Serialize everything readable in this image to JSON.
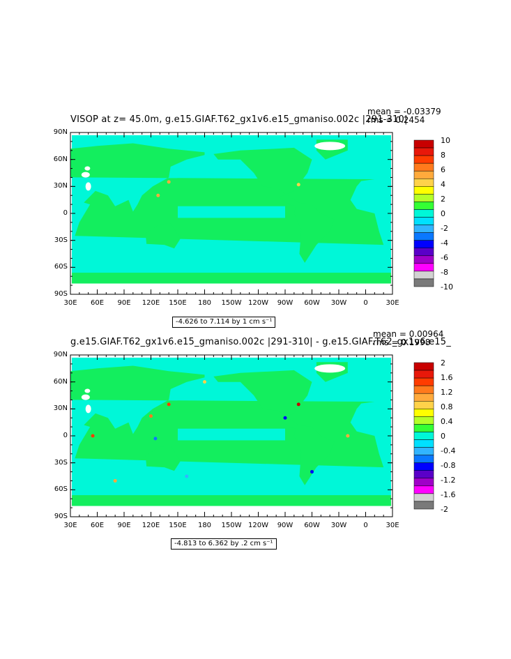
{
  "panels": [
    {
      "title": "VISOP at z=   45.0m, g.e15.GIAF.T62_gx1v6.e15_gmaniso.002c |291-310|",
      "mean": "mean = -0.03379",
      "rms": "rms = 0.2454",
      "range": "-4.626 to 7.114 by 1 cm s⁻¹",
      "colorbar_labels": [
        "10",
        "8",
        "6",
        "4",
        "2",
        "0",
        "-2",
        "-4",
        "-6",
        "-8",
        "-10"
      ]
    },
    {
      "title": "g.e15.GIAF.T62_gx1v6.e15_gmaniso.002c |291-310| - g.e15.GIAF.T62_gx1v6.e15_",
      "mean": "mean = 0.00964",
      "rms": "rms = 0.1998",
      "range": "-4.813 to 6.362 by .2 cm s⁻¹",
      "colorbar_labels": [
        "2",
        "1.6",
        "1.2",
        "0.8",
        "0.4",
        "0",
        "-0.4",
        "-0.8",
        "-1.2",
        "-1.6",
        "-2"
      ]
    }
  ],
  "lat_labels": [
    "90N",
    "60N",
    "30N",
    "0",
    "30S",
    "60S",
    "90S"
  ],
  "lon_labels": [
    "30E",
    "60E",
    "90E",
    "120E",
    "150E",
    "180",
    "150W",
    "120W",
    "90W",
    "60W",
    "30W",
    "0",
    "30E"
  ],
  "colors": {
    "land": "#13ee5e",
    "ocean": "#00f7d8",
    "palette": [
      "#c80000",
      "#e8180a",
      "#ff3c00",
      "#ff7a1c",
      "#ffaa3c",
      "#ffd24a",
      "#ffff00",
      "#b4ff28",
      "#34ff34",
      "#00f7d8",
      "#00e0ff",
      "#32b4ff",
      "#0a78ff",
      "#0000ff",
      "#5a00c8",
      "#a000c8",
      "#ff00ff",
      "#d2d2d2",
      "#7a7a7a"
    ]
  }
}
